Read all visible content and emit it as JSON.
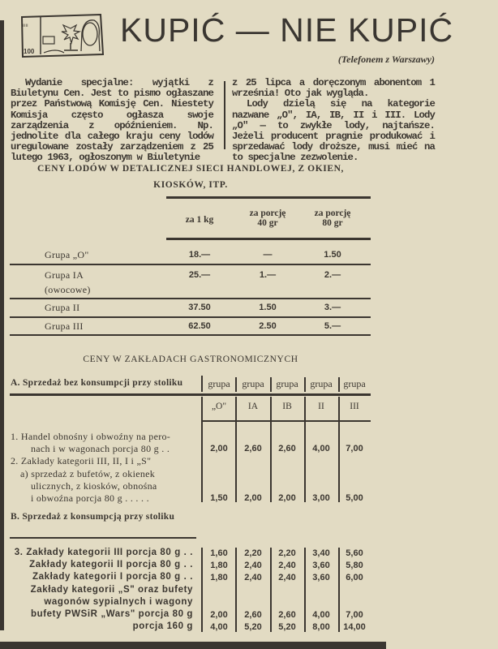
{
  "header": {
    "logo_text": [
      "100",
      "500"
    ],
    "title": "KUPIĆ — NIE KUPIĆ",
    "subtitle": "(Telefonem z Warszawy)"
  },
  "article": {
    "lead_bold": "Wydanie specjalne:",
    "left_text": " wyjątki z Biuletynu Cen. Jest to pismo ogłaszane przez Państwową Komisję Cen. Niestety Komisja często ogłasza swoje zarządzenia z opóźnieniem. Np. jednolite dla całego kraju ceny lodów uregulowane zostały zarządzeniem z 25 lutego 1963, ogłoszonym w Biuletynie",
    "right_p1": "z 25 lipca a doręczonym abonentom 1 września! Oto jak wygląda.",
    "right_p2": "Lody dzielą się na kategorie nazwane „O\", IA, IB, II i III. Lody „O\" — to zwykłe lody, najtańsze. Jeżeli producent pragnie produkować i sprzedawać lody droższe, musi mieć na to specjalne zezwolenie."
  },
  "retail": {
    "heading_line1": "CENY LODÓW W DETALICZNEJ SIECI HANDLOWEJ, Z OKIEN,",
    "heading_line2": "KIOSKÓW, ITP.",
    "columns": [
      [
        "za 1 kg"
      ],
      [
        "za porcję",
        "40 gr"
      ],
      [
        "za porcję",
        "80 gr"
      ]
    ],
    "rows": [
      {
        "label": [
          "Grupa „O\""
        ],
        "values": [
          "18.—",
          "—",
          "1.50"
        ]
      },
      {
        "label": [
          "Grupa IA",
          "(owocowe)"
        ],
        "values": [
          "25.—",
          "1.—",
          "2.—"
        ]
      },
      {
        "label": [
          "Grupa II"
        ],
        "values": [
          "37.50",
          "1.50",
          "3.—"
        ]
      },
      {
        "label": [
          "Grupa III"
        ],
        "values": [
          "62.50",
          "2.50",
          "5.—"
        ]
      }
    ]
  },
  "gastro": {
    "heading": "CENY W ZAKŁADACH GASTRONOMICZNYCH",
    "section_a": "A. Sprzedaż bez konsumpcji przy stoliku",
    "group_word": "grupa",
    "groups": [
      "„O\"",
      "IA",
      "IB",
      "II",
      "III"
    ],
    "section_b": "B. Sprzedaż z konsumpcją przy stoliku",
    "lines": [
      {
        "text": "1. Handel obnośny i obwoźny na pero-",
        "indent": 0
      },
      {
        "text": "nach i w wagonach porcja 80 g . .",
        "indent": 2,
        "values": [
          "2,00",
          "2,60",
          "2,60",
          "4,00",
          "7,00"
        ]
      },
      {
        "text": "2. Zakłady kategorii III, II, I i „S\"",
        "indent": 0
      },
      {
        "text": "a) sprzedaż z bufetów, z okienek",
        "indent": 1
      },
      {
        "text": "ulicznych, z kiosków, obnośna",
        "indent": 2
      },
      {
        "text": "i obwoźna porcja 80 g . . . . .",
        "indent": 2,
        "values": [
          "1,50",
          "2,00",
          "2,00",
          "3,00",
          "5,00"
        ]
      }
    ],
    "lines_b": [
      {
        "text": "3. Zakłady kategorii III porcja 80 g . .",
        "values": [
          "1,60",
          "2,20",
          "2,20",
          "3,40",
          "5,60"
        ]
      },
      {
        "text": "Zakłady kategorii II porcja 80 g . .",
        "values": [
          "1,80",
          "2,40",
          "2,40",
          "3,60",
          "5,80"
        ]
      },
      {
        "text": "Zakłady kategorii I porcja 80 g . .",
        "values": [
          "1,80",
          "2,40",
          "2,40",
          "3,60",
          "6,00"
        ]
      },
      {
        "text": "Zakłady kategorii „S\" oraz bufety"
      },
      {
        "text": "wagonów sypialnych i wagony"
      },
      {
        "text": "bufety PWSiR „Wars\" porcja 80 g",
        "values": [
          "2,00",
          "2,60",
          "2,60",
          "4,00",
          "7,00"
        ]
      },
      {
        "text": "porcja 160 g",
        "values": [
          "4,00",
          "5,20",
          "5,20",
          "8,00",
          "14,00"
        ]
      }
    ]
  }
}
